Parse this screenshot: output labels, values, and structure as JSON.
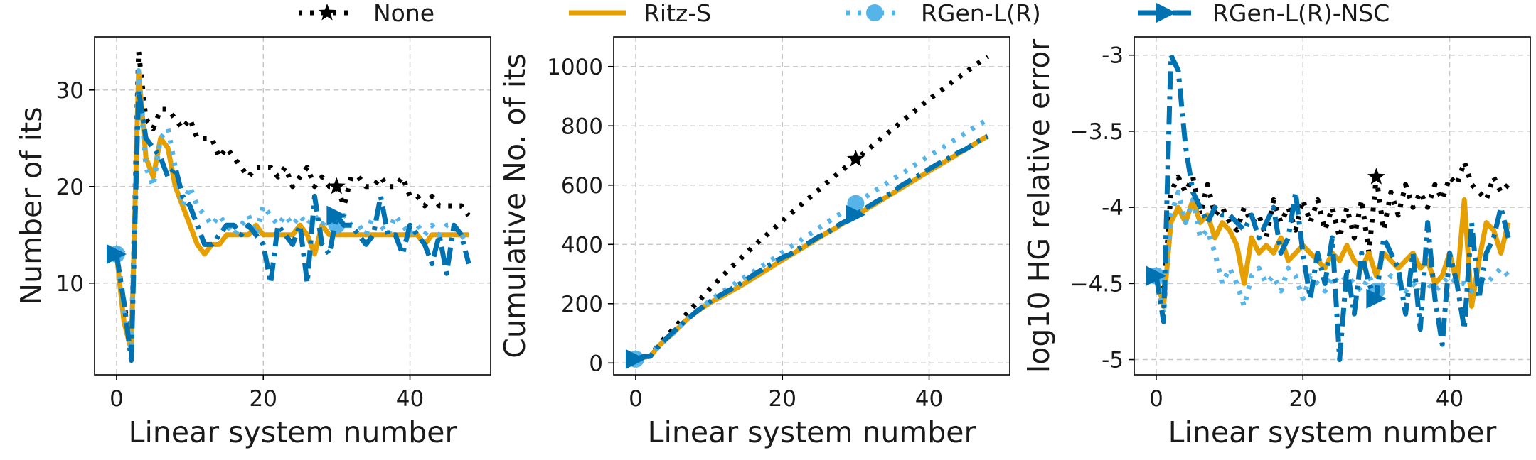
{
  "legend": {
    "items": [
      {
        "label": "None",
        "color": "#000000",
        "style": "dotted",
        "marker": "star"
      },
      {
        "label": "Ritz-S",
        "color": "#E69F00",
        "style": "solid",
        "marker": "none"
      },
      {
        "label": "RGen-L(R)",
        "color": "#56B4E9",
        "style": "dotted",
        "marker": "circle"
      },
      {
        "label": "RGen-L(R)-NSC",
        "color": "#0072B2",
        "style": "dashdot",
        "marker": "triangle-right"
      }
    ]
  },
  "chart_data": [
    {
      "type": "line",
      "xlabel": "Linear system number",
      "ylabel": "Number of its",
      "xlim": [
        -3,
        51
      ],
      "ylim": [
        0.5,
        35.5
      ],
      "xticks": [
        0,
        20,
        40
      ],
      "yticks": [
        10,
        20,
        30
      ],
      "grid": true,
      "marker_x": [
        0,
        30
      ],
      "series": [
        {
          "name": "None",
          "values": [
            13,
            8,
            3,
            34,
            27,
            26,
            28,
            28,
            27,
            26,
            27,
            25,
            25,
            25,
            23,
            24,
            23,
            22,
            21,
            22,
            22,
            22,
            21,
            22,
            20,
            21,
            22,
            20,
            21,
            20,
            20,
            18,
            21,
            21,
            20,
            20,
            21,
            20,
            20,
            21,
            19,
            19,
            18,
            19,
            18,
            18,
            18,
            18,
            17
          ]
        },
        {
          "name": "Ritz-S",
          "values": [
            13,
            6,
            3,
            32,
            23,
            21,
            25,
            24,
            20,
            18,
            16,
            14,
            13,
            14,
            14,
            15,
            15,
            15,
            15,
            16,
            15,
            15,
            15,
            15,
            15,
            16,
            15,
            13,
            16,
            15,
            15,
            15,
            15,
            15,
            15,
            15,
            15,
            15,
            15,
            15,
            15,
            15,
            14,
            15,
            15,
            15,
            15,
            15,
            15
          ]
        },
        {
          "name": "RGen-L(R)",
          "values": [
            13,
            7,
            3,
            32,
            22,
            20,
            25,
            26,
            22,
            18,
            20,
            18,
            17,
            16,
            17,
            16,
            15,
            16,
            17,
            15,
            18,
            17,
            16,
            17,
            16,
            17,
            16,
            17,
            16,
            17,
            16,
            17,
            16,
            16,
            15,
            17,
            16,
            15,
            17,
            16,
            15,
            16,
            15,
            16,
            15,
            16,
            16,
            15,
            14
          ]
        },
        {
          "name": "RGen-L(R)-NSC",
          "values": [
            13,
            8,
            2,
            30,
            25,
            24,
            23,
            21,
            22,
            19,
            18,
            16,
            14,
            14,
            15,
            16,
            16,
            15,
            16,
            15,
            14,
            10,
            16,
            15,
            14,
            16,
            10,
            19,
            14,
            13,
            17,
            16,
            16,
            15,
            14,
            15,
            19,
            15,
            15,
            13,
            16,
            15,
            14,
            12,
            15,
            11,
            16,
            15,
            12
          ]
        }
      ]
    },
    {
      "type": "line",
      "xlabel": "Linear system number",
      "ylabel": "Cumulative No. of its",
      "xlim": [
        -3,
        51
      ],
      "ylim": [
        -40,
        1100
      ],
      "xticks": [
        0,
        20,
        40
      ],
      "yticks": [
        0,
        200,
        400,
        600,
        800,
        1000
      ],
      "grid": true,
      "marker_x": [
        0,
        30
      ],
      "series": [
        {
          "name": "None",
          "values": [
            13,
            21,
            24,
            58,
            85,
            111,
            139,
            167,
            194,
            220,
            247,
            272,
            297,
            322,
            345,
            369,
            392,
            414,
            435,
            457,
            479,
            501,
            522,
            544,
            564,
            585,
            607,
            627,
            648,
            668,
            688,
            706,
            727,
            748,
            768,
            788,
            809,
            829,
            849,
            870,
            889,
            908,
            926,
            945,
            963,
            981,
            999,
            1017,
            1034
          ]
        },
        {
          "name": "Ritz-S",
          "values": [
            13,
            19,
            22,
            54,
            77,
            98,
            123,
            147,
            167,
            185,
            201,
            215,
            228,
            242,
            256,
            271,
            286,
            301,
            316,
            332,
            347,
            362,
            377,
            392,
            407,
            423,
            438,
            451,
            467,
            482,
            497,
            512,
            527,
            542,
            557,
            572,
            587,
            602,
            617,
            632,
            647,
            662,
            676,
            691,
            706,
            721,
            736,
            751,
            766
          ]
        },
        {
          "name": "RGen-L(R)",
          "values": [
            13,
            20,
            23,
            55,
            77,
            97,
            122,
            148,
            170,
            188,
            208,
            226,
            243,
            259,
            276,
            292,
            307,
            323,
            340,
            355,
            373,
            390,
            406,
            423,
            439,
            456,
            472,
            489,
            505,
            522,
            538,
            555,
            571,
            587,
            602,
            619,
            635,
            650,
            667,
            683,
            698,
            714,
            729,
            745,
            760,
            776,
            792,
            807,
            821
          ]
        },
        {
          "name": "RGen-L(R)-NSC",
          "values": [
            13,
            21,
            23,
            53,
            78,
            102,
            125,
            146,
            168,
            187,
            205,
            221,
            235,
            249,
            264,
            280,
            296,
            311,
            327,
            342,
            356,
            366,
            382,
            397,
            411,
            427,
            437,
            456,
            470,
            483,
            500,
            516,
            532,
            547,
            561,
            576,
            595,
            610,
            625,
            638,
            654,
            669,
            683,
            695,
            710,
            721,
            737,
            752,
            764
          ]
        }
      ]
    },
    {
      "type": "line",
      "xlabel": "Linear system number",
      "ylabel": "log10 HG relative error",
      "xlim": [
        -3,
        51
      ],
      "ylim": [
        -5.1,
        -2.88
      ],
      "xticks": [
        0,
        20,
        40
      ],
      "yticks": [
        -5.0,
        -4.5,
        -4.0,
        -3.5,
        -3.0
      ],
      "grid": true,
      "marker_x": [
        0,
        30
      ],
      "series": [
        {
          "name": "None",
          "values": [
            -4.45,
            -4.6,
            -3.9,
            -3.8,
            -3.9,
            -3.8,
            -4.05,
            -3.85,
            -4.05,
            -4.0,
            -4.1,
            -4.15,
            -4.0,
            -4.1,
            -4.05,
            -4.2,
            -3.95,
            -4.1,
            -4.0,
            -4.15,
            -3.95,
            -4.1,
            -3.95,
            -4.15,
            -4.0,
            -4.2,
            -4.0,
            -4.2,
            -3.95,
            -4.3,
            -3.8,
            -4.15,
            -3.9,
            -4.05,
            -3.85,
            -4.0,
            -3.9,
            -4.0,
            -3.85,
            -3.95,
            -3.8,
            -3.85,
            -3.7,
            -3.85,
            -3.9,
            -3.95,
            -3.8,
            -3.9,
            -3.85
          ]
        },
        {
          "name": "Ritz-S",
          "values": [
            -4.45,
            -4.65,
            -4.1,
            -4.0,
            -4.1,
            -3.95,
            -4.1,
            -4.05,
            -4.2,
            -4.1,
            -4.15,
            -4.25,
            -4.5,
            -4.2,
            -4.3,
            -4.25,
            -4.3,
            -4.2,
            -4.35,
            -4.3,
            -4.25,
            -4.3,
            -4.35,
            -4.4,
            -4.3,
            -4.35,
            -4.25,
            -4.35,
            -4.4,
            -4.3,
            -4.45,
            -4.3,
            -4.35,
            -4.4,
            -4.35,
            -4.3,
            -4.4,
            -4.35,
            -4.5,
            -4.45,
            -4.3,
            -4.5,
            -3.95,
            -4.65,
            -4.35,
            -4.1,
            -4.15,
            -4.3,
            -4.1
          ]
        },
        {
          "name": "RGen-L(R)",
          "values": [
            -4.45,
            -4.7,
            -4.05,
            -3.9,
            -4.1,
            -3.95,
            -4.2,
            -4.15,
            -4.3,
            -4.5,
            -4.4,
            -4.5,
            -4.65,
            -4.45,
            -4.4,
            -4.5,
            -4.45,
            -4.55,
            -4.4,
            -4.45,
            -4.6,
            -4.45,
            -4.5,
            -4.55,
            -4.45,
            -4.5,
            -4.45,
            -4.5,
            -4.55,
            -4.45,
            -4.55,
            -4.5,
            -4.45,
            -4.5,
            -4.55,
            -4.5,
            -4.55,
            -4.5,
            -4.55,
            -4.5,
            -4.45,
            -4.5,
            -4.5,
            -4.55,
            -4.45,
            -4.5,
            -4.45,
            -4.4,
            -4.45
          ]
        },
        {
          "name": "RGen-L(R)-NSC",
          "values": [
            -4.45,
            -4.75,
            -3.0,
            -3.1,
            -3.6,
            -3.9,
            -4.0,
            -4.1,
            -4.0,
            -4.05,
            -4.05,
            -4.1,
            -4.15,
            -4.05,
            -4.2,
            -4.1,
            -4.0,
            -4.3,
            -4.2,
            -3.9,
            -4.3,
            -4.6,
            -4.3,
            -4.5,
            -4.2,
            -5.0,
            -4.4,
            -4.7,
            -4.3,
            -4.5,
            -4.6,
            -4.2,
            -4.3,
            -4.4,
            -4.7,
            -4.3,
            -4.8,
            -4.1,
            -4.6,
            -4.9,
            -4.3,
            -4.5,
            -4.8,
            -4.1,
            -4.6,
            -4.3,
            -4.2,
            -4.0,
            -4.2
          ]
        }
      ]
    }
  ]
}
